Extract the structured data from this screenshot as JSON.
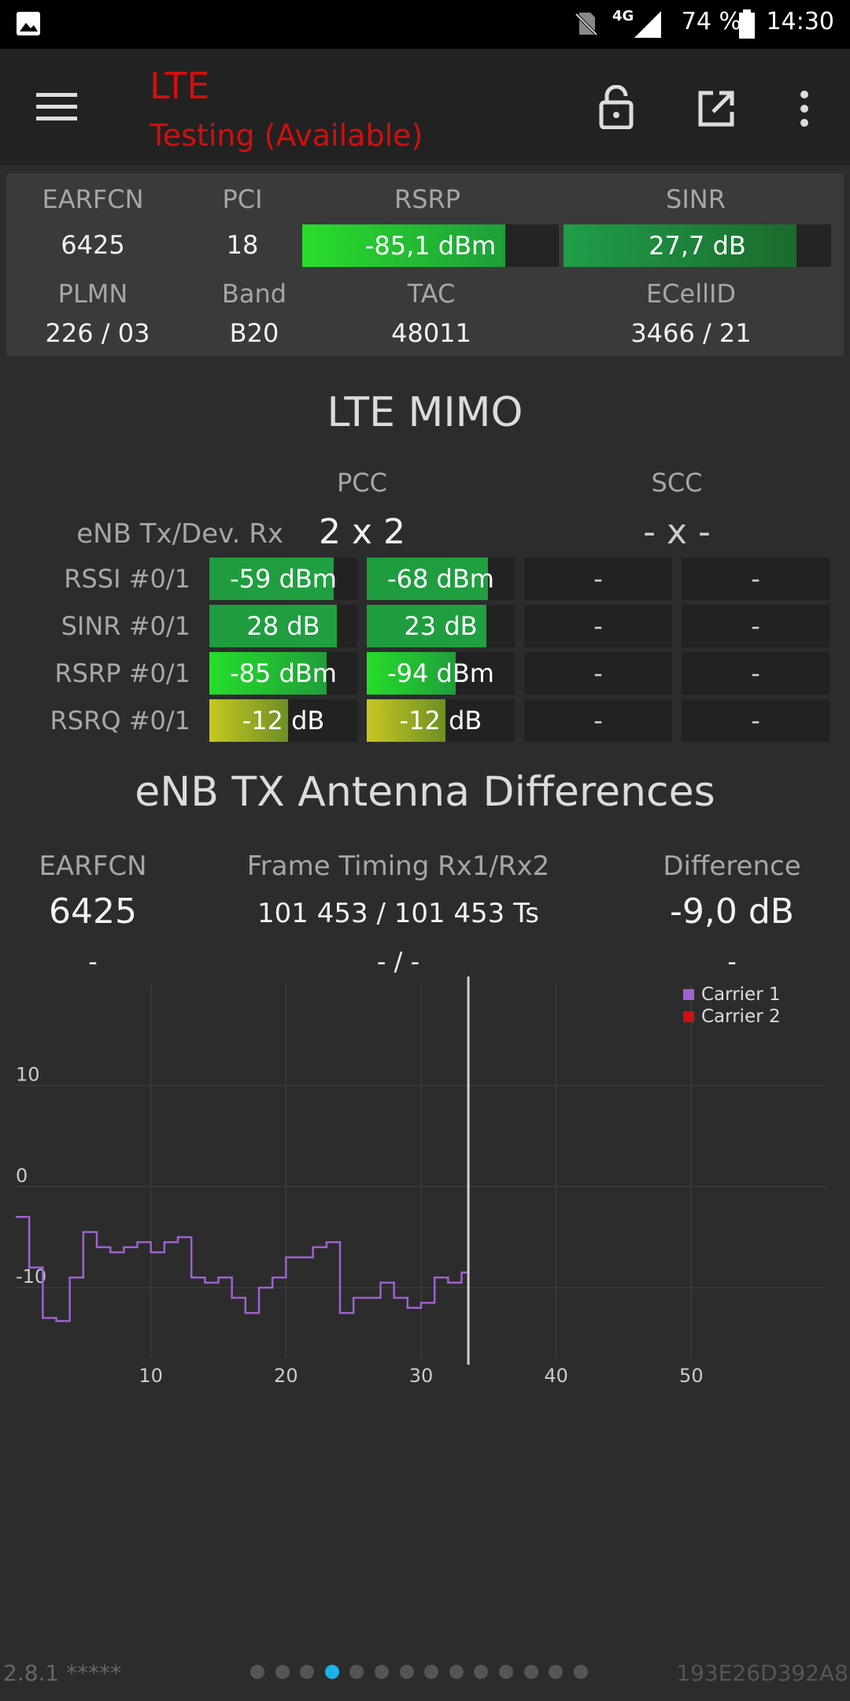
{
  "status_bar": {
    "network": "4G",
    "battery": "74 %",
    "time": "14:30",
    "icons": [
      "image-icon",
      "no-sim-icon",
      "signal-icon",
      "battery-icon"
    ]
  },
  "app_bar": {
    "title": "LTE",
    "subtitle": "Testing (Available)",
    "icons": [
      "menu-icon",
      "lock-icon",
      "open-external-icon",
      "overflow-icon"
    ],
    "title_color": "#d10f0f"
  },
  "summary": {
    "earfcn_label": "EARFCN",
    "pci_label": "PCI",
    "rsrp_label": "RSRP",
    "sinr_label": "SINR",
    "earfcn": "6425",
    "pci": "18",
    "rsrp": "-85,1 dBm",
    "rsrp_fill": 0.79,
    "sinr": "27,7 dB",
    "sinr_fill": 0.87,
    "plmn_label": "PLMN",
    "band_label": "Band",
    "tac_label": "TAC",
    "ecellid_label": "ECellID",
    "plmn": "226 / 03",
    "band": "B20",
    "tac": "48011",
    "ecellid": "3466 / 21"
  },
  "mimo": {
    "title": "LTE MIMO",
    "pcc_label": "PCC",
    "scc_label": "SCC",
    "config_label": "eNB Tx/Dev. Rx",
    "pcc_config": "2 x 2",
    "scc_config": "- x -",
    "rows": [
      {
        "label": "RSSI #0/1",
        "pcc0": "-59 dBm",
        "pcc0_fill": 0.84,
        "pcc1": "-68 dBm",
        "pcc1_fill": 0.82,
        "scc0": "-",
        "scc1": "-",
        "kind": "green"
      },
      {
        "label": "SINR #0/1",
        "pcc0": "28 dB",
        "pcc0_fill": 0.86,
        "pcc1": "23 dB",
        "pcc1_fill": 0.81,
        "scc0": "-",
        "scc1": "-",
        "kind": "green"
      },
      {
        "label": "RSRP #0/1",
        "pcc0": "-85 dBm",
        "pcc0_fill": 0.79,
        "pcc1": "-94 dBm",
        "pcc1_fill": 0.6,
        "scc0": "-",
        "scc1": "-",
        "kind": "lime"
      },
      {
        "label": "RSRQ #0/1",
        "pcc0": "-12 dB",
        "pcc0_fill": 0.53,
        "pcc1": "-12 dB",
        "pcc1_fill": 0.53,
        "scc0": "-",
        "scc1": "-",
        "kind": "yellow"
      }
    ]
  },
  "antenna": {
    "title": "eNB TX Antenna Differences",
    "col1_label": "EARFCN",
    "col2_label": "Frame Timing Rx1/Rx2",
    "col3_label": "Difference",
    "row1": {
      "earfcn": "6425",
      "timing": "101 453 / 101 453 Ts",
      "diff": "-9,0 dB"
    },
    "row2": {
      "earfcn": "-",
      "timing": "- / -",
      "diff": "-"
    }
  },
  "chart_data": {
    "type": "line",
    "legend": [
      "Carrier 1",
      "Carrier 2"
    ],
    "legend_position": "top-right",
    "colors": [
      "#a060d0",
      "#cc1111"
    ],
    "grid": true,
    "xlim": [
      0,
      60
    ],
    "ylim": [
      -17,
      20
    ],
    "x_ticks": [
      10,
      20,
      30,
      40,
      50
    ],
    "y_ticks": [
      10,
      0,
      -10
    ],
    "cursor_x": 33.5,
    "series": [
      {
        "name": "Carrier 1",
        "x": [
          0,
          1,
          2,
          3,
          4,
          5,
          6,
          7,
          8,
          9,
          10,
          11,
          12,
          13,
          14,
          15,
          16,
          17,
          18,
          19,
          20,
          21,
          22,
          23,
          24,
          25,
          26,
          27,
          28,
          29,
          30,
          31,
          32,
          33
        ],
        "values": [
          -3,
          -8,
          -13,
          -13.3,
          -9,
          -4.5,
          -6,
          -6.5,
          -6,
          -5.5,
          -6.5,
          -5.5,
          -5,
          -9,
          -9.5,
          -9,
          -11,
          -12.5,
          -10,
          -9,
          -7,
          -7,
          -6,
          -5.5,
          -12.5,
          -11,
          -11,
          -9.5,
          -11,
          -12,
          -11.5,
          -9,
          -9.5,
          -8.5
        ]
      },
      {
        "name": "Carrier 2",
        "x": [],
        "values": []
      }
    ]
  },
  "footer": {
    "version": "2.8.1 *****",
    "device_id": "193E26D392A8",
    "page_count": 14,
    "active_page": 3,
    "active_color": "#1ab2e8"
  }
}
